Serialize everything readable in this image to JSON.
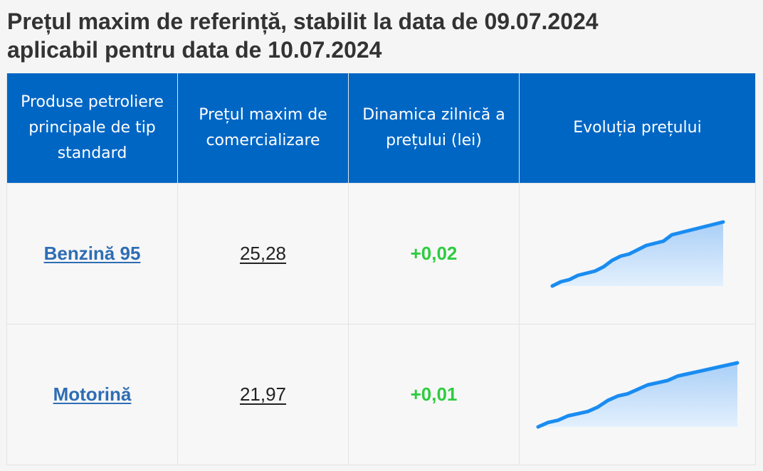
{
  "heading": {
    "line1": "Prețul maxim de referință, stabilit la data de 09.07.2024",
    "line2": "aplicabil pentru data de 10.07.2024"
  },
  "table": {
    "headers": [
      "Produse petroliere principale de tip standard",
      "Prețul maxim de comercializare",
      "Dinamica zilnică a prețului (lei)",
      "Evoluția prețului"
    ],
    "rows": [
      {
        "product": "Benzină 95",
        "price": "25,28",
        "delta": "+0,02"
      },
      {
        "product": "Motorină",
        "price": "21,97",
        "delta": "+0,01"
      }
    ]
  },
  "colors": {
    "header_bg": "#0066c4",
    "link": "#2e6db4",
    "positive_delta": "#2ecc40",
    "spark_line": "#1a8cf0",
    "spark_fill_top": "#a9cff7",
    "spark_fill_bottom": "#e3f0fd"
  },
  "chart_data": [
    {
      "type": "area",
      "series": [
        {
          "values": [
            0,
            2,
            3,
            5,
            6,
            7,
            9,
            12,
            14,
            15,
            17,
            19,
            20,
            21,
            24,
            25,
            26,
            27,
            28,
            29,
            30
          ]
        }
      ]
    },
    {
      "type": "area",
      "series": [
        {
          "values": [
            0,
            2,
            3,
            5,
            6,
            7,
            9,
            12,
            14,
            15,
            17,
            19,
            20,
            21,
            23,
            24,
            25,
            26,
            27,
            28,
            29
          ]
        }
      ]
    }
  ]
}
